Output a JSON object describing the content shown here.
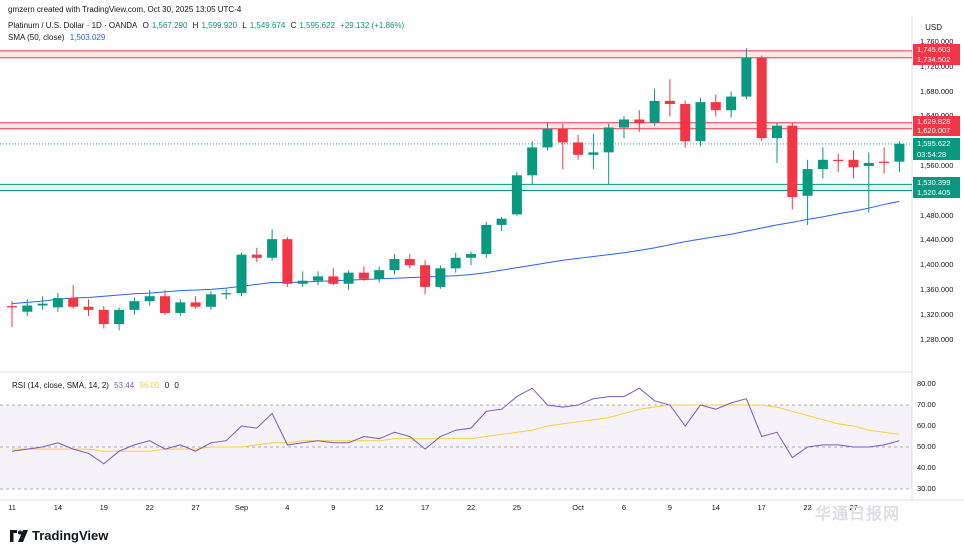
{
  "header": {
    "creator_line": "gmzern created with TradingView.com, Oct 30, 2025 13:05 UTC-4",
    "symbol": "Platinum / U.S. Dollar · 1D · OANDA",
    "o_label": "O",
    "o_value": "1,567.290",
    "h_label": "H",
    "h_value": "1,599.920",
    "l_label": "L",
    "l_value": "1,549.674",
    "c_label": "C",
    "c_value": "1,595.622",
    "change": "+29.132 (+1.86%)",
    "sma_label": "SMA (50, close)",
    "sma_value": "1,503.029"
  },
  "currency": "USD",
  "rsi_legend": {
    "label": "RSI (14, close, SMA, 14, 2)",
    "rsi_value": "53.44",
    "sma_value": "56.00",
    "extra1": "0",
    "extra2": "0"
  },
  "brand": {
    "name": "TradingView"
  },
  "watermark": "华通日报网",
  "colors": {
    "up": "#089981",
    "down": "#f23645",
    "sma": "#2962ff",
    "rsi": "#7e57c2",
    "rsi_ma": "#f7d23a",
    "resistance": "#f23645",
    "support": "#089981"
  },
  "chart_data": [
    {
      "type": "candlestick",
      "title": "Platinum / U.S. Dollar · 1D · OANDA",
      "ylim": [
        1260,
        1760
      ],
      "y_ticks": [
        1760,
        1720,
        1680,
        1640,
        1600,
        1560,
        1520,
        1480,
        1440,
        1400,
        1360,
        1320,
        1280
      ],
      "x_ticks": [
        "11",
        "14",
        "19",
        "22",
        "27",
        "Sep",
        "4",
        "9",
        "12",
        "17",
        "22",
        "25",
        "Oct",
        "6",
        "9",
        "14",
        "17",
        "22",
        "27"
      ],
      "x_tick_index": [
        0,
        3,
        6,
        9,
        12,
        15,
        18,
        21,
        24,
        27,
        30,
        33,
        37,
        40,
        43,
        46,
        49,
        52,
        55
      ],
      "candles": [
        {
          "o": 1334,
          "h": 1342,
          "l": 1300,
          "c": 1332
        },
        {
          "o": 1325,
          "h": 1345,
          "l": 1318,
          "c": 1335
        },
        {
          "o": 1335,
          "h": 1350,
          "l": 1328,
          "c": 1338
        },
        {
          "o": 1332,
          "h": 1355,
          "l": 1325,
          "c": 1347
        },
        {
          "o": 1347,
          "h": 1368,
          "l": 1330,
          "c": 1333
        },
        {
          "o": 1333,
          "h": 1345,
          "l": 1318,
          "c": 1328
        },
        {
          "o": 1328,
          "h": 1334,
          "l": 1298,
          "c": 1305
        },
        {
          "o": 1305,
          "h": 1332,
          "l": 1295,
          "c": 1328
        },
        {
          "o": 1328,
          "h": 1348,
          "l": 1320,
          "c": 1342
        },
        {
          "o": 1342,
          "h": 1360,
          "l": 1335,
          "c": 1350
        },
        {
          "o": 1350,
          "h": 1360,
          "l": 1320,
          "c": 1323
        },
        {
          "o": 1323,
          "h": 1345,
          "l": 1318,
          "c": 1340
        },
        {
          "o": 1340,
          "h": 1350,
          "l": 1330,
          "c": 1333
        },
        {
          "o": 1333,
          "h": 1358,
          "l": 1328,
          "c": 1353
        },
        {
          "o": 1353,
          "h": 1362,
          "l": 1345,
          "c": 1355
        },
        {
          "o": 1355,
          "h": 1420,
          "l": 1350,
          "c": 1417
        },
        {
          "o": 1417,
          "h": 1428,
          "l": 1405,
          "c": 1412
        },
        {
          "o": 1412,
          "h": 1458,
          "l": 1408,
          "c": 1442
        },
        {
          "o": 1442,
          "h": 1445,
          "l": 1365,
          "c": 1370
        },
        {
          "o": 1370,
          "h": 1390,
          "l": 1365,
          "c": 1375
        },
        {
          "o": 1375,
          "h": 1390,
          "l": 1368,
          "c": 1382
        },
        {
          "o": 1382,
          "h": 1395,
          "l": 1368,
          "c": 1370
        },
        {
          "o": 1370,
          "h": 1392,
          "l": 1360,
          "c": 1388
        },
        {
          "o": 1388,
          "h": 1398,
          "l": 1375,
          "c": 1378
        },
        {
          "o": 1378,
          "h": 1398,
          "l": 1372,
          "c": 1392
        },
        {
          "o": 1392,
          "h": 1418,
          "l": 1385,
          "c": 1410
        },
        {
          "o": 1410,
          "h": 1418,
          "l": 1395,
          "c": 1400
        },
        {
          "o": 1400,
          "h": 1408,
          "l": 1353,
          "c": 1365
        },
        {
          "o": 1365,
          "h": 1400,
          "l": 1362,
          "c": 1395
        },
        {
          "o": 1395,
          "h": 1420,
          "l": 1388,
          "c": 1412
        },
        {
          "o": 1412,
          "h": 1422,
          "l": 1400,
          "c": 1418
        },
        {
          "o": 1418,
          "h": 1470,
          "l": 1412,
          "c": 1465
        },
        {
          "o": 1465,
          "h": 1478,
          "l": 1455,
          "c": 1475
        },
        {
          "o": 1482,
          "h": 1550,
          "l": 1480,
          "c": 1545
        },
        {
          "o": 1545,
          "h": 1600,
          "l": 1530,
          "c": 1590
        },
        {
          "o": 1590,
          "h": 1630,
          "l": 1585,
          "c": 1620
        },
        {
          "o": 1620,
          "h": 1628,
          "l": 1555,
          "c": 1598
        },
        {
          "o": 1598,
          "h": 1610,
          "l": 1570,
          "c": 1578
        },
        {
          "o": 1578,
          "h": 1612,
          "l": 1555,
          "c": 1582
        },
        {
          "o": 1582,
          "h": 1628,
          "l": 1530,
          "c": 1622
        },
        {
          "o": 1622,
          "h": 1640,
          "l": 1605,
          "c": 1635
        },
        {
          "o": 1635,
          "h": 1650,
          "l": 1615,
          "c": 1630
        },
        {
          "o": 1630,
          "h": 1685,
          "l": 1625,
          "c": 1665
        },
        {
          "o": 1665,
          "h": 1700,
          "l": 1640,
          "c": 1660
        },
        {
          "o": 1660,
          "h": 1665,
          "l": 1590,
          "c": 1600
        },
        {
          "o": 1600,
          "h": 1670,
          "l": 1592,
          "c": 1663
        },
        {
          "o": 1663,
          "h": 1675,
          "l": 1640,
          "c": 1650
        },
        {
          "o": 1650,
          "h": 1680,
          "l": 1638,
          "c": 1672
        },
        {
          "o": 1672,
          "h": 1750,
          "l": 1668,
          "c": 1735
        },
        {
          "o": 1735,
          "h": 1738,
          "l": 1600,
          "c": 1605
        },
        {
          "o": 1605,
          "h": 1630,
          "l": 1565,
          "c": 1625
        },
        {
          "o": 1625,
          "h": 1630,
          "l": 1490,
          "c": 1510
        },
        {
          "o": 1512,
          "h": 1570,
          "l": 1465,
          "c": 1555
        },
        {
          "o": 1555,
          "h": 1590,
          "l": 1540,
          "c": 1570
        },
        {
          "o": 1570,
          "h": 1580,
          "l": 1550,
          "c": 1568
        },
        {
          "o": 1570,
          "h": 1585,
          "l": 1540,
          "c": 1558
        },
        {
          "o": 1560,
          "h": 1582,
          "l": 1485,
          "c": 1565
        },
        {
          "o": 1567,
          "h": 1590,
          "l": 1548,
          "c": 1565
        },
        {
          "o": 1567,
          "h": 1600,
          "l": 1550,
          "c": 1596
        }
      ],
      "sma50": [
        1338,
        1340,
        1342,
        1345,
        1347,
        1348,
        1350,
        1352,
        1354,
        1355,
        1357,
        1359,
        1360,
        1361,
        1363,
        1366,
        1369,
        1372,
        1372,
        1373,
        1374,
        1375,
        1376,
        1377,
        1378,
        1379,
        1380,
        1381,
        1382,
        1383,
        1385,
        1388,
        1392,
        1396,
        1400,
        1404,
        1408,
        1411,
        1414,
        1417,
        1420,
        1424,
        1428,
        1433,
        1438,
        1442,
        1446,
        1450,
        1455,
        1460,
        1465,
        1469,
        1474,
        1478,
        1483,
        1487,
        1492,
        1498,
        1503
      ],
      "levels": [
        {
          "label": "1,745.603",
          "kind": "resistance"
        },
        {
          "label": "1,734.502",
          "kind": "resistance"
        },
        {
          "label": "1,629.828",
          "kind": "resistance"
        },
        {
          "label": "1,620.007",
          "kind": "resistance"
        },
        {
          "label": "1,530.399",
          "kind": "support"
        },
        {
          "label": "1,520.405",
          "kind": "support"
        }
      ],
      "level_values": [
        1745.603,
        1734.502,
        1629.828,
        1620.007,
        1530.399,
        1520.405
      ],
      "last_price": {
        "label": "1,595.622",
        "value": 1595.622,
        "countdown": "03:54:28"
      }
    },
    {
      "type": "line",
      "title": "RSI (14, close, SMA, 14, 2)",
      "ylim": [
        28,
        82
      ],
      "y_ticks": [
        80,
        70,
        60,
        50,
        40,
        30
      ],
      "band": [
        30,
        70
      ],
      "series": [
        {
          "name": "RSI",
          "values": [
            48,
            49,
            50,
            52,
            49,
            47,
            42,
            48,
            51,
            53,
            49,
            51,
            48,
            52,
            53,
            60,
            59,
            66,
            51,
            52,
            53,
            52,
            52,
            55,
            54,
            57,
            55,
            49,
            55,
            58,
            59,
            67,
            68,
            74,
            78,
            70,
            69,
            70,
            73,
            74,
            74,
            78,
            72,
            70,
            60,
            70,
            68,
            71,
            73,
            55,
            57,
            45,
            50,
            51,
            51,
            50,
            50,
            51,
            53
          ]
        },
        {
          "name": "RSI MA",
          "values": [
            49,
            49,
            49,
            49,
            49,
            49,
            48,
            48,
            48,
            48,
            49,
            49,
            49,
            50,
            50,
            50,
            51,
            52,
            52,
            53,
            53,
            53,
            53,
            53,
            53,
            54,
            54,
            54,
            54,
            54,
            54,
            55,
            56,
            57,
            58,
            60,
            61,
            62,
            63,
            64,
            66,
            68,
            69,
            70,
            70,
            70,
            70,
            70,
            70,
            70,
            69,
            67,
            65,
            63,
            61,
            60,
            58,
            57,
            56
          ]
        }
      ]
    }
  ]
}
